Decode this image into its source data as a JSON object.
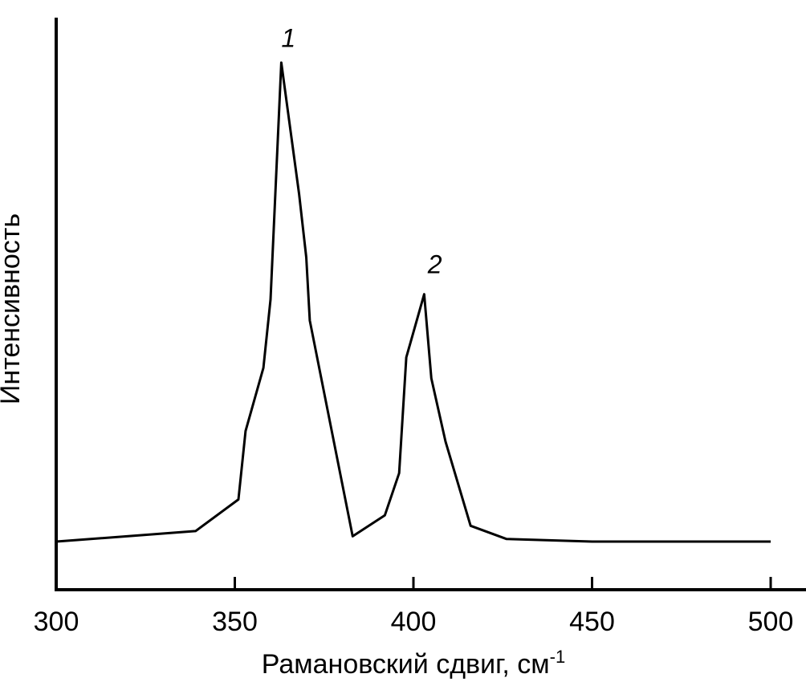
{
  "chart_data": {
    "type": "line",
    "title": "",
    "xlabel": "Рамановский сдвиг, см",
    "xlabel_superscript": "-1",
    "ylabel": "Интенсивность",
    "xlim": [
      300,
      500
    ],
    "ylim": [
      0,
      100
    ],
    "xticks": [
      300,
      350,
      400,
      450,
      500
    ],
    "yticks_shown": false,
    "grid": false,
    "series": [
      {
        "x": [
          300,
          339,
          351,
          353,
          358,
          360,
          363,
          368,
          370,
          371,
          383,
          392,
          396,
          398,
          403,
          405,
          409,
          416,
          426,
          450,
          500
        ],
        "y": [
          9,
          11,
          17,
          30,
          42,
          55,
          100,
          75,
          63,
          51,
          10,
          14,
          22,
          44,
          56,
          40,
          28,
          12,
          9.5,
          9,
          9
        ]
      }
    ],
    "annotations": [
      {
        "text": "1",
        "x": 365,
        "y": 103
      },
      {
        "text": "2",
        "x": 406,
        "y": 60
      }
    ]
  }
}
